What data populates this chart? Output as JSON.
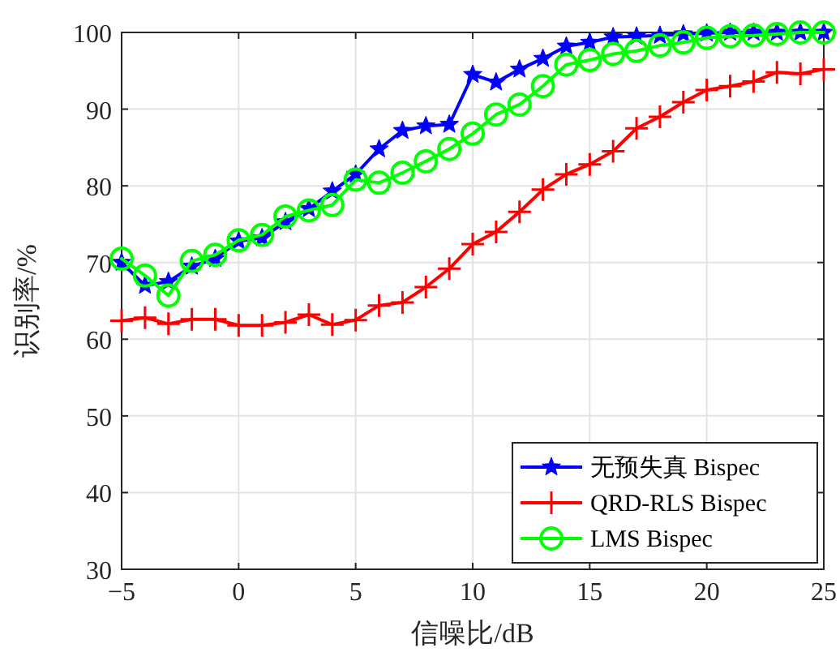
{
  "chart_data": {
    "type": "line",
    "xlabel": "信噪比/dB",
    "ylabel": "识别率/%",
    "x": [
      -5,
      -4,
      -3,
      -2,
      -1,
      0,
      1,
      2,
      3,
      4,
      5,
      6,
      7,
      8,
      9,
      10,
      11,
      12,
      13,
      14,
      15,
      16,
      17,
      18,
      19,
      20,
      21,
      22,
      23,
      24,
      25
    ],
    "xlim": [
      -5,
      25
    ],
    "xticks": [
      -5,
      0,
      5,
      10,
      15,
      20,
      25
    ],
    "ylim": [
      30,
      100
    ],
    "yticks": [
      30,
      40,
      50,
      60,
      70,
      80,
      90,
      100
    ],
    "grid": true,
    "legend": "bottom right",
    "line_style": "solid",
    "series": [
      {
        "name": "无预失真 Bispec",
        "color": "#0000ff",
        "marker": "star",
        "values": [
          70,
          67,
          67.5,
          69.5,
          70.5,
          72.8,
          73.2,
          75.3,
          77,
          79.3,
          81.5,
          84.8,
          87.2,
          87.8,
          88,
          94.5,
          93.5,
          95.2,
          96.6,
          98.2,
          98.7,
          99.4,
          99.5,
          99.6,
          99.8,
          99.9,
          100,
          100,
          100,
          100,
          100
        ]
      },
      {
        "name": "QRD-RLS Bispec",
        "color": "#ff0000",
        "marker": "cross",
        "values": [
          62.4,
          62.8,
          62,
          62.6,
          62.6,
          61.8,
          61.8,
          62.2,
          63.2,
          61.9,
          62.5,
          64.4,
          64.8,
          66.8,
          69.2,
          72.4,
          74,
          76.6,
          79.5,
          81.5,
          82.8,
          84.5,
          87.5,
          89,
          90.9,
          92.5,
          93,
          93.6,
          94.8,
          94.6,
          95.2
        ]
      },
      {
        "name": "LMS Bispec",
        "color": "#00ff00",
        "marker": "circle",
        "values": [
          70.5,
          68.3,
          65.7,
          70.2,
          71,
          72.9,
          73.6,
          76,
          76.8,
          77.5,
          80.8,
          80.4,
          81.7,
          83.2,
          84.8,
          86.8,
          89.3,
          90.6,
          93,
          95.8,
          96.4,
          97.2,
          97.6,
          98.3,
          98.7,
          99.3,
          99.5,
          99.6,
          99.8,
          100,
          100
        ]
      }
    ]
  }
}
